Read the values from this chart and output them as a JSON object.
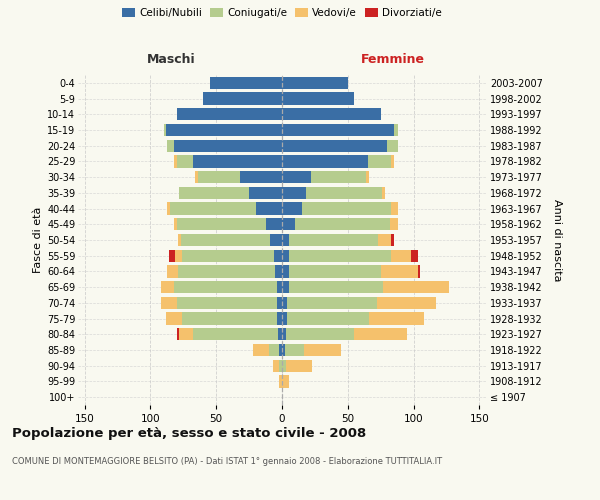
{
  "age_groups": [
    "100+",
    "95-99",
    "90-94",
    "85-89",
    "80-84",
    "75-79",
    "70-74",
    "65-69",
    "60-64",
    "55-59",
    "50-54",
    "45-49",
    "40-44",
    "35-39",
    "30-34",
    "25-29",
    "20-24",
    "15-19",
    "10-14",
    "5-9",
    "0-4"
  ],
  "birth_years": [
    "≤ 1907",
    "1908-1912",
    "1913-1917",
    "1918-1922",
    "1923-1927",
    "1928-1932",
    "1933-1937",
    "1938-1942",
    "1943-1947",
    "1948-1952",
    "1953-1957",
    "1958-1962",
    "1963-1967",
    "1968-1972",
    "1973-1977",
    "1978-1982",
    "1983-1987",
    "1988-1992",
    "1993-1997",
    "1998-2002",
    "2003-2007"
  ],
  "male": {
    "celibi": [
      0,
      0,
      0,
      2,
      3,
      4,
      4,
      4,
      5,
      6,
      9,
      12,
      20,
      25,
      32,
      68,
      82,
      88,
      80,
      60,
      55
    ],
    "coniugati": [
      0,
      0,
      2,
      8,
      65,
      72,
      76,
      78,
      74,
      70,
      68,
      68,
      65,
      53,
      32,
      12,
      5,
      2,
      0,
      0,
      0
    ],
    "vedovi": [
      0,
      2,
      5,
      12,
      10,
      12,
      12,
      10,
      8,
      5,
      2,
      2,
      2,
      0,
      2,
      2,
      0,
      0,
      0,
      0,
      0
    ],
    "divorziati": [
      0,
      0,
      0,
      0,
      2,
      0,
      0,
      0,
      0,
      5,
      0,
      0,
      0,
      0,
      0,
      0,
      0,
      0,
      0,
      0,
      0
    ]
  },
  "female": {
    "nubili": [
      0,
      0,
      0,
      2,
      3,
      4,
      4,
      5,
      5,
      5,
      5,
      10,
      15,
      18,
      22,
      65,
      80,
      85,
      75,
      55,
      50
    ],
    "coniugate": [
      0,
      0,
      3,
      15,
      52,
      62,
      68,
      72,
      70,
      78,
      68,
      72,
      68,
      58,
      42,
      18,
      8,
      3,
      0,
      0,
      0
    ],
    "vedove": [
      0,
      5,
      20,
      28,
      40,
      42,
      45,
      50,
      28,
      15,
      10,
      6,
      5,
      2,
      2,
      2,
      0,
      0,
      0,
      0,
      0
    ],
    "divorziate": [
      0,
      0,
      0,
      0,
      0,
      0,
      0,
      0,
      2,
      5,
      2,
      0,
      0,
      0,
      0,
      0,
      0,
      0,
      0,
      0,
      0
    ]
  },
  "colors": {
    "celibi": "#3a6ea5",
    "coniugati": "#b5cc8e",
    "vedovi": "#f5c16c",
    "divorziati": "#cc2222"
  },
  "xlim": 155,
  "title": "Popolazione per età, sesso e stato civile - 2008",
  "subtitle": "COMUNE DI MONTEMAGGIORE BELSITO (PA) - Dati ISTAT 1° gennaio 2008 - Elaborazione TUTTITALIA.IT",
  "ylabel": "Fasce di età",
  "ylabel_right": "Anni di nascita",
  "bg_color": "#f9f9f0",
  "grid_color": "#cccccc"
}
